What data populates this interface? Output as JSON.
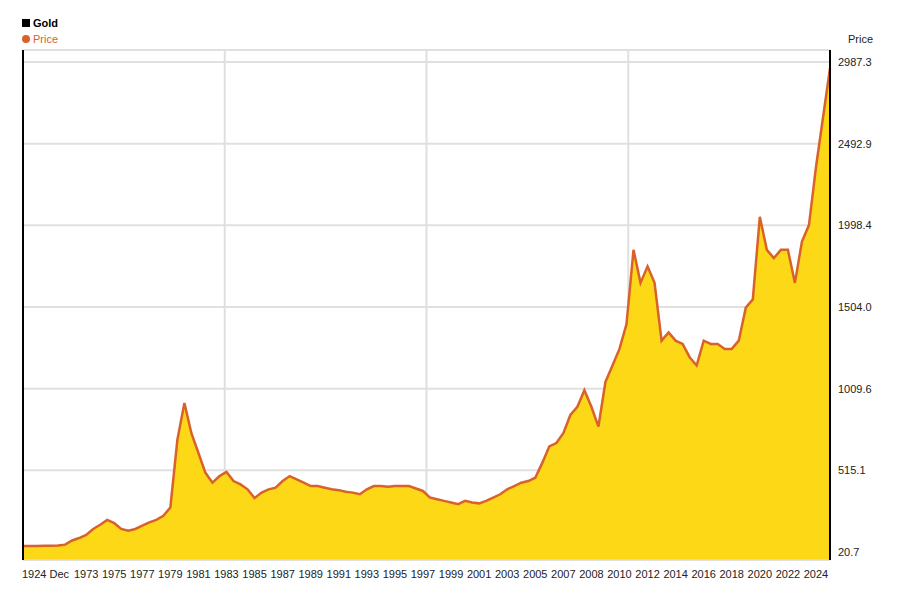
{
  "chart_data": {
    "type": "area",
    "title": "Gold",
    "y_label": "Price",
    "legend": "upper left",
    "grid": true,
    "categories": [
      "1924 Dec",
      null,
      null,
      null,
      null,
      null,
      null,
      null,
      null,
      "1973",
      null,
      null,
      null,
      "1975",
      null,
      null,
      null,
      "1977",
      null,
      null,
      null,
      "1979",
      null,
      null,
      null,
      "1981",
      null,
      null,
      null,
      "1983",
      null,
      null,
      null,
      "1985",
      null,
      null,
      null,
      "1987",
      null,
      null,
      null,
      "1989",
      null,
      null,
      null,
      "1991",
      null,
      null,
      null,
      "1993",
      null,
      null,
      null,
      "1995",
      null,
      null,
      null,
      "1997",
      null,
      null,
      null,
      "1999",
      null,
      null,
      null,
      "2001",
      null,
      null,
      null,
      "2003",
      null,
      null,
      null,
      "2005",
      null,
      null,
      null,
      "2007",
      null,
      null,
      null,
      "2008",
      null,
      null,
      null,
      "2010",
      null,
      null,
      null,
      "2012",
      null,
      null,
      null,
      "2014",
      null,
      null,
      null,
      "2016",
      null,
      null,
      null,
      "2018",
      null,
      null,
      null,
      "2020",
      null,
      null,
      null,
      "2022",
      null,
      null,
      null,
      "2024",
      null,
      null
    ],
    "series": [
      {
        "name": "Price",
        "color": "#d9622b",
        "values": [
          57,
          57,
          57,
          58,
          58,
          60,
          65,
          90,
          105,
          124,
          160,
          185,
          215,
          195,
          160,
          150,
          160,
          180,
          200,
          215,
          240,
          290,
          700,
          923,
          740,
          620,
          500,
          440,
          480,
          505,
          450,
          430,
          400,
          347,
          380,
          400,
          410,
          450,
          480,
          460,
          440,
          420,
          420,
          410,
          400,
          395,
          385,
          380,
          370,
          400,
          420,
          420,
          415,
          420,
          420,
          420,
          405,
          390,
          350,
          340,
          330,
          320,
          310,
          330,
          320,
          315,
          330,
          350,
          370,
          400,
          420,
          440,
          450,
          470,
          560,
          660,
          680,
          740,
          850,
          900,
          1000,
          900,
          780,
          1050,
          1150,
          1250,
          1400,
          1850,
          1650,
          1750,
          1650,
          1300,
          1350,
          1300,
          1280,
          1200,
          1150,
          1300,
          1280,
          1280,
          1250,
          1250,
          1300,
          1500,
          1550,
          2050,
          1850,
          1800,
          1850,
          1850,
          1650,
          1900,
          2000,
          2350,
          2650,
          2950
        ]
      }
    ],
    "ylim": [
      -28,
      3060
    ],
    "yticks": [
      20.7,
      515.1,
      1009.6,
      {
        "value": 1504,
        "label": "1504.0"
      },
      1998.4,
      2492.9,
      2987.3
    ]
  }
}
